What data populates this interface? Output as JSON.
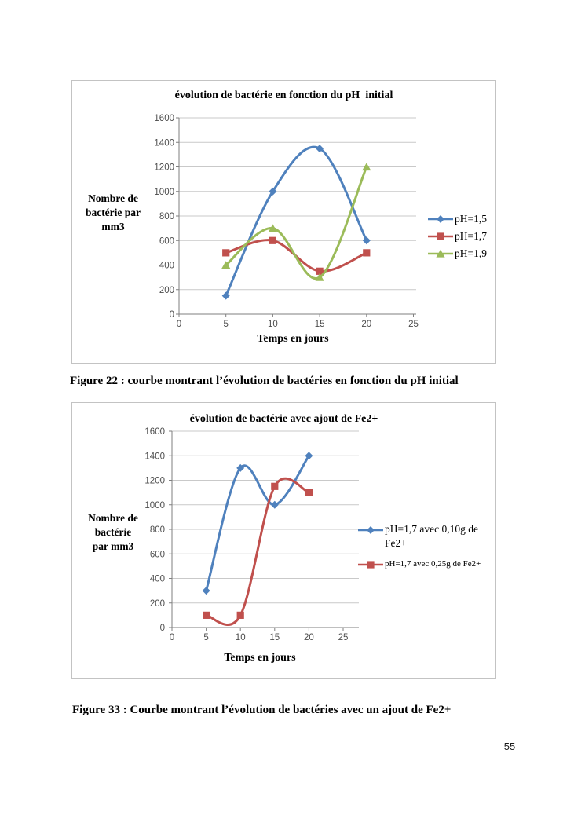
{
  "page": {
    "number": "55"
  },
  "captions": {
    "figure22": "Figure 22 : courbe montrant l’évolution de bactéries en fonction du pH initial",
    "figure33": "Figure 33 : Courbe montrant l’évolution de bactéries avec un ajout de Fe2+"
  },
  "chart_data": [
    {
      "type": "line",
      "title": "évolution de bactérie en fonction du pH  initial",
      "xlabel": "Temps en jours",
      "ylabel": "Nombre de bactérie par mm3",
      "ylabel_lines": [
        "Nombre de",
        "bactérie par",
        "mm3"
      ],
      "x": [
        5,
        10,
        15,
        20
      ],
      "series": [
        {
          "name": "pH=1,5",
          "color": "#4F81BD",
          "marker": "diamond",
          "values": [
            150,
            1000,
            1350,
            600
          ]
        },
        {
          "name": "pH=1,7",
          "color": "#C0504D",
          "marker": "square",
          "values": [
            500,
            600,
            350,
            500
          ]
        },
        {
          "name": "pH=1,9",
          "color": "#9BBB59",
          "marker": "triangle",
          "values": [
            400,
            700,
            300,
            1200
          ]
        }
      ],
      "xlim": [
        0,
        25
      ],
      "ylim": [
        0,
        1600
      ],
      "xtick_step": 5,
      "ytick_step": 200,
      "grid": true,
      "smooth": true,
      "legend_position": "right"
    },
    {
      "type": "line",
      "title": "évolution de bactérie avec ajout de Fe2+",
      "xlabel": "Temps en jours",
      "ylabel": "Nombre de bactérie par mm3",
      "ylabel_lines": [
        "Nombre de",
        "bactérie",
        "par mm3"
      ],
      "x": [
        5,
        10,
        15,
        20
      ],
      "series": [
        {
          "name": "pH=1,7 avec 0,10g de Fe2+",
          "color": "#4F81BD",
          "marker": "diamond",
          "values": [
            300,
            1300,
            1000,
            1400
          ]
        },
        {
          "name": "pH=1,7 avec 0,25g de Fe2+",
          "color": "#C0504D",
          "marker": "square",
          "values": [
            100,
            100,
            1150,
            1100
          ]
        }
      ],
      "xlim": [
        0,
        25
      ],
      "ylim": [
        0,
        1600
      ],
      "xtick_step": 5,
      "ytick_step": 200,
      "grid": true,
      "smooth": true,
      "legend_position": "right"
    }
  ]
}
